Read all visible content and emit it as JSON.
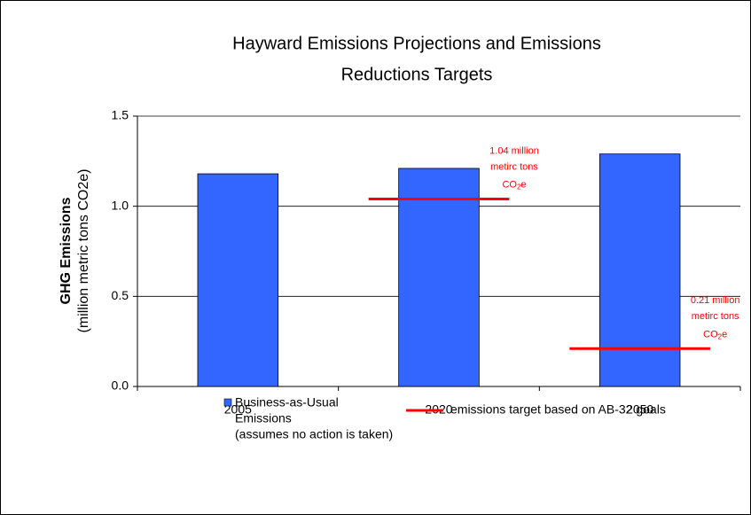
{
  "chart_data": {
    "type": "bar",
    "title": [
      "Hayward Emissions Projections and Emissions",
      "Reductions Targets"
    ],
    "y_label": [
      "GHG Emissions",
      "(million metric tons CO2e)"
    ],
    "categories": [
      "2005",
      "2020",
      "2050"
    ],
    "series": [
      {
        "name": [
          "Business-as-Usual",
          "Emissions",
          "(assumes no action is taken)"
        ],
        "color": "#3366ff",
        "values": [
          1.18,
          1.21,
          1.29
        ]
      },
      {
        "name": [
          "emissions target based on AB-32 goals"
        ],
        "color": "#ff0000",
        "type": "target",
        "values": [
          null,
          1.04,
          0.21
        ]
      }
    ],
    "annotations": [
      {
        "category": 1,
        "lines": [
          "1.04 million",
          "metirc tons"
        ],
        "unit": [
          "CO",
          "2",
          "e"
        ]
      },
      {
        "category": 2,
        "lines": [
          "0.21 million",
          "metirc tons"
        ],
        "unit": [
          "CO",
          "2",
          "e"
        ]
      }
    ],
    "ylim": [
      0,
      1.5
    ],
    "yticks": [
      {
        "value": 0,
        "label": "0.0"
      },
      {
        "value": 0.5,
        "label": "0.5"
      },
      {
        "value": 1,
        "label": "1.0"
      },
      {
        "value": 1.5,
        "label": "1.5"
      }
    ],
    "grid": true,
    "legend": "bottom"
  }
}
